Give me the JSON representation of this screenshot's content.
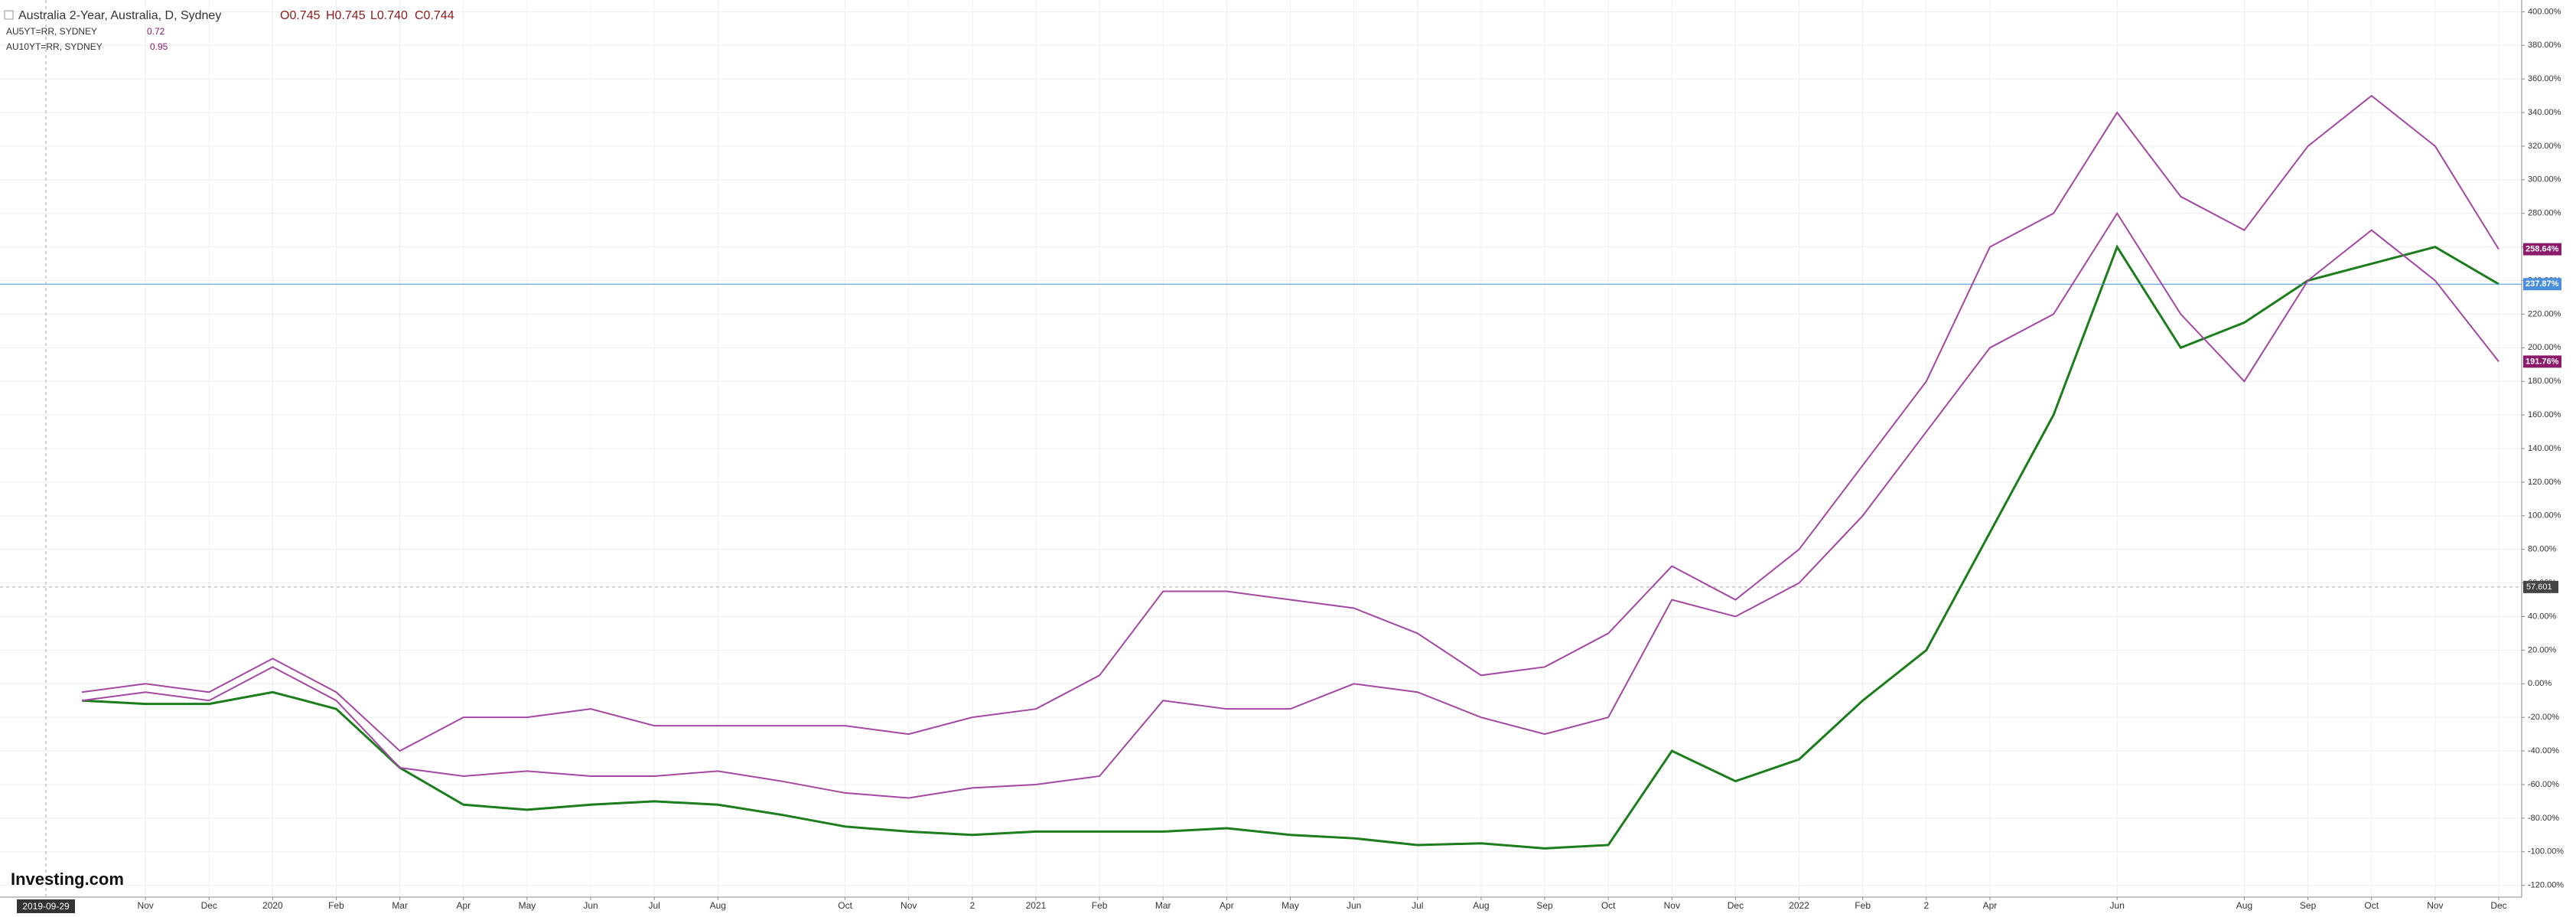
{
  "chart_data": {
    "type": "line",
    "legend_ohlc": [
      "O0.745",
      "H0.745",
      "L0.740",
      "C0.744"
    ],
    "x_start_label": "2019-09-29",
    "logo": "Investing.com",
    "x": [
      "2019-10",
      "2019-11",
      "2019-12",
      "2020-01",
      "2020-02",
      "2020-03",
      "2020-04",
      "2020-05",
      "2020-06",
      "2020-07",
      "2020-08",
      "2020-09",
      "2020-10",
      "2020-11",
      "2020-12",
      "2021-01",
      "2021-02",
      "2021-03",
      "2021-04",
      "2021-05",
      "2021-06",
      "2021-07",
      "2021-08",
      "2021-09",
      "2021-10",
      "2021-11",
      "2021-12",
      "2022-01",
      "2022-02",
      "2022-03",
      "2022-04",
      "2022-05",
      "2022-06",
      "2022-07",
      "2022-08",
      "2022-09",
      "2022-10",
      "2022-11",
      "2022-12"
    ],
    "series": [
      {
        "name": "Australia 2-Year, Australia, D, Sydney",
        "color": "#1b7d1b",
        "last_label": "237.87%",
        "label_color": "#4a8fdb",
        "values": [
          -10,
          -12,
          -12,
          -5,
          -15,
          -50,
          -72,
          -75,
          -72,
          -70,
          -72,
          -78,
          -85,
          -88,
          -90,
          -88,
          -88,
          -88,
          -86,
          -90,
          -92,
          -96,
          -95,
          -98,
          -96,
          -40,
          -58,
          -45,
          -10,
          20,
          90,
          160,
          260,
          200,
          215,
          240,
          250,
          260,
          237.87
        ]
      },
      {
        "name": "AU5YT=RR, SYDNEY",
        "legend_value": "0.72",
        "color": "#a347a3",
        "last_label": "191.76%",
        "label_color": "#8b1a6b",
        "values": [
          -10,
          -5,
          -10,
          10,
          -10,
          -50,
          -55,
          -52,
          -55,
          -55,
          -52,
          -58,
          -65,
          -68,
          -62,
          -60,
          -55,
          -10,
          -15,
          -15,
          0,
          -5,
          -20,
          -30,
          -20,
          50,
          40,
          60,
          100,
          150,
          200,
          220,
          280,
          220,
          180,
          240,
          270,
          240,
          191.76
        ]
      },
      {
        "name": "AU10YT=RR, SYDNEY",
        "legend_value": "0.95",
        "color": "#a347a3",
        "last_label": "258.64%",
        "label_color": "#8b1a6b",
        "values": [
          -5,
          0,
          -5,
          15,
          -5,
          -40,
          -20,
          -20,
          -15,
          -25,
          -25,
          -25,
          -25,
          -30,
          -20,
          -15,
          5,
          55,
          55,
          50,
          45,
          30,
          5,
          10,
          30,
          70,
          50,
          80,
          130,
          180,
          260,
          280,
          340,
          290,
          270,
          320,
          350,
          320,
          258.64
        ]
      }
    ],
    "crosshair": {
      "value": 57.601,
      "label": "57.601"
    },
    "ylim": [
      -127,
      407
    ],
    "yticks": [
      {
        "value": 400,
        "label": "400.00%"
      },
      {
        "value": 380,
        "label": "380.00%"
      },
      {
        "value": 360,
        "label": "360.00%"
      },
      {
        "value": 340,
        "label": "340.00%"
      },
      {
        "value": 320,
        "label": "320.00%"
      },
      {
        "value": 300,
        "label": "300.00%"
      },
      {
        "value": 280,
        "label": "280.00%"
      },
      {
        "value": 260,
        "label": "260.00%"
      },
      {
        "value": 240,
        "label": "240.00%"
      },
      {
        "value": 220,
        "label": "220.00%"
      },
      {
        "value": 200,
        "label": "200.00%"
      },
      {
        "value": 180,
        "label": "180.00%"
      },
      {
        "value": 160,
        "label": "160.00%"
      },
      {
        "value": 140,
        "label": "140.00%"
      },
      {
        "value": 120,
        "label": "120.00%"
      },
      {
        "value": 100,
        "label": "100.00%"
      },
      {
        "value": 80,
        "label": "80.00%"
      },
      {
        "value": 60,
        "label": "60.00%"
      },
      {
        "value": 40,
        "label": "40.00%"
      },
      {
        "value": 20,
        "label": "20.00%"
      },
      {
        "value": 0,
        "label": "0.00%"
      },
      {
        "value": -20,
        "label": "-20.00%"
      },
      {
        "value": -40,
        "label": "-40.00%"
      },
      {
        "value": -60,
        "label": "-60.00%"
      },
      {
        "value": -80,
        "label": "-80.00%"
      },
      {
        "value": -100,
        "label": "-100.00%"
      },
      {
        "value": -120,
        "label": "-120.00%"
      }
    ],
    "xticks": [
      {
        "value": "2019-11",
        "label": "Nov"
      },
      {
        "value": "2019-12",
        "label": "Dec"
      },
      {
        "value": "2020-01",
        "label": "2020"
      },
      {
        "value": "2020-02",
        "label": "Feb"
      },
      {
        "value": "2020-03",
        "label": "Mar"
      },
      {
        "value": "2020-04",
        "label": "Apr"
      },
      {
        "value": "2020-05",
        "label": "May"
      },
      {
        "value": "2020-06",
        "label": "Jun"
      },
      {
        "value": "2020-07",
        "label": "Jul"
      },
      {
        "value": "2020-08",
        "label": "Aug"
      },
      {
        "value": "2020-10",
        "label": "Oct"
      },
      {
        "value": "2020-11",
        "label": "Nov"
      },
      {
        "value": "2020-12",
        "label": "2"
      },
      {
        "value": "2021-01",
        "label": "2021"
      },
      {
        "value": "2021-02",
        "label": "Feb"
      },
      {
        "value": "2021-03",
        "label": "Mar"
      },
      {
        "value": "2021-04",
        "label": "Apr"
      },
      {
        "value": "2021-05",
        "label": "May"
      },
      {
        "value": "2021-06",
        "label": "Jun"
      },
      {
        "value": "2021-07",
        "label": "Jul"
      },
      {
        "value": "2021-08",
        "label": "Aug"
      },
      {
        "value": "2021-09",
        "label": "Sep"
      },
      {
        "value": "2021-10",
        "label": "Oct"
      },
      {
        "value": "2021-11",
        "label": "Nov"
      },
      {
        "value": "2021-12",
        "label": "Dec"
      },
      {
        "value": "2022-01",
        "label": "2022"
      },
      {
        "value": "2022-02",
        "label": "Feb"
      },
      {
        "value": "2022-03",
        "label": "2"
      },
      {
        "value": "2022-04",
        "label": "Apr"
      },
      {
        "value": "2022-06",
        "label": "Jun"
      },
      {
        "value": "2022-08",
        "label": "Aug"
      },
      {
        "value": "2022-09",
        "label": "Sep"
      },
      {
        "value": "2022-10",
        "label": "Oct"
      },
      {
        "value": "2022-11",
        "label": "Nov"
      },
      {
        "value": "2022-12",
        "label": "Dec"
      }
    ],
    "grid": true
  }
}
